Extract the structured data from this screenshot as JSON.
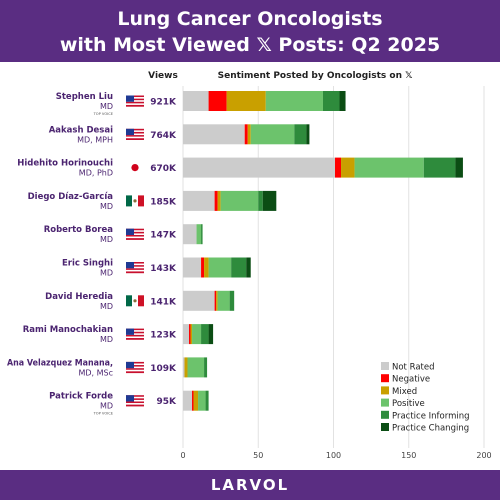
{
  "header": {
    "title_line1": "Lung Cancer Oncologists",
    "title_line2": "with Most Viewed 𝕏 Posts: Q2 2025"
  },
  "footer": {
    "brand": "LARVOL"
  },
  "columns": {
    "views_header": "Views",
    "sentiment_header": "Sentiment Posted by Oncologists on 𝕏"
  },
  "colors": {
    "header_bg": "#5a2d82",
    "name_text": "#4b2470",
    "not_rated": "#cccccc",
    "negative": "#ff0000",
    "mixed": "#c9a000",
    "positive": "#6cc36c",
    "practice_informing": "#2e8b3c",
    "practice_changing": "#0b4d14"
  },
  "oncologists": [
    {
      "name": "Stephen Liu",
      "credentials": "MD",
      "badge": "TOP VOICE",
      "flag": "us-flag-icon",
      "views": "921K"
    },
    {
      "name": "Aakash Desai",
      "credentials": "MD, MPH",
      "badge": "",
      "flag": "us-flag-icon",
      "views": "764K"
    },
    {
      "name": "Hidehito Horinouchi",
      "credentials": "MD, PhD",
      "badge": "",
      "flag": "japan-flag-icon",
      "views": "670K"
    },
    {
      "name": "Diego Díaz-García",
      "credentials": "MD",
      "badge": "",
      "flag": "mexico-flag-icon",
      "views": "185K"
    },
    {
      "name": "Roberto Borea",
      "credentials": "MD",
      "badge": "",
      "flag": "us-flag-icon",
      "views": "147K"
    },
    {
      "name": "Eric Singhi",
      "credentials": "MD",
      "badge": "",
      "flag": "us-flag-icon",
      "views": "143K"
    },
    {
      "name": "David Heredia",
      "credentials": "MD",
      "badge": "",
      "flag": "mexico-flag-icon",
      "views": "141K"
    },
    {
      "name": "Rami Manochakian",
      "credentials": "MD",
      "badge": "",
      "flag": "us-flag-icon",
      "views": "123K"
    },
    {
      "name": "Ana Velazquez Manana,",
      "credentials": "MD, MSc",
      "badge": "",
      "flag": "us-flag-icon",
      "views": "109K"
    },
    {
      "name": "Patrick Forde",
      "credentials": "MD",
      "badge": "TOP VOICE",
      "flag": "us-flag-icon",
      "views": "95K"
    }
  ],
  "chart_data": {
    "type": "bar",
    "orientation": "horizontal",
    "stacked": true,
    "title": "Sentiment Posted by Oncologists on 𝕏",
    "categories": [
      "Stephen Liu",
      "Aakash Desai",
      "Hidehito Horinouchi",
      "Diego Díaz-García",
      "Roberto Borea",
      "Eric Singhi",
      "David Heredia",
      "Rami Manochakian",
      "Ana Velazquez Manana",
      "Patrick Forde"
    ],
    "series": [
      {
        "name": "Not Rated",
        "color": "#cccccc",
        "values": [
          17,
          41,
          101,
          21,
          9,
          12,
          21,
          4,
          1,
          6
        ]
      },
      {
        "name": "Negative",
        "color": "#ff0000",
        "values": [
          12,
          2,
          4,
          2,
          0,
          2,
          1,
          1,
          0,
          1
        ]
      },
      {
        "name": "Mixed",
        "color": "#c9a000",
        "values": [
          26,
          2,
          9,
          2,
          0,
          3,
          1,
          1,
          2,
          3
        ]
      },
      {
        "name": "Positive",
        "color": "#6cc36c",
        "values": [
          38,
          29,
          46,
          25,
          3,
          15,
          8,
          6,
          11,
          5
        ]
      },
      {
        "name": "Practice Informing",
        "color": "#2e8b3c",
        "values": [
          11,
          8,
          21,
          3,
          1,
          10,
          3,
          5,
          2,
          2
        ]
      },
      {
        "name": "Practice Changing",
        "color": "#0b4d14",
        "values": [
          4,
          2,
          5,
          9,
          0,
          3,
          0,
          3,
          0,
          0
        ]
      }
    ],
    "xlim": [
      0,
      200
    ],
    "xticks": [
      0,
      50,
      100,
      150,
      200
    ],
    "grid": true,
    "legend_position": "bottom-right"
  }
}
